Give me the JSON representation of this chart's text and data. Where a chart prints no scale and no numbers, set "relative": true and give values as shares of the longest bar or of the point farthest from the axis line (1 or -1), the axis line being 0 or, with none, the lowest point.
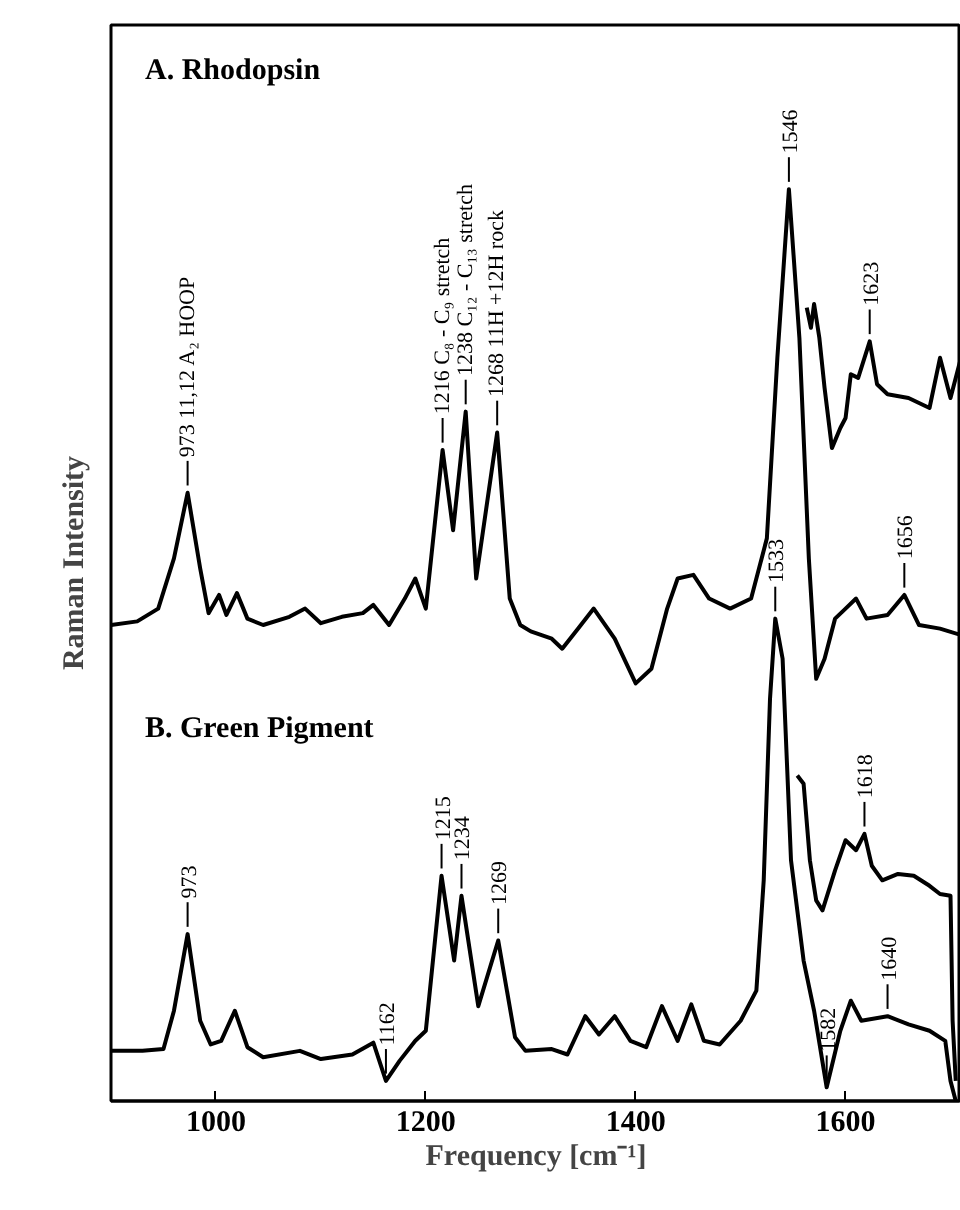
{
  "chart_data": {
    "type": "line",
    "relative": true,
    "xlabel": "Frequency [cm⁻¹]",
    "ylabel": "Raman Intensity",
    "xlim": [
      900,
      1710
    ],
    "xticks": [
      1000,
      1200,
      1400,
      1600
    ],
    "grid": false,
    "marker": "none",
    "line_style": "solid",
    "tick_labels": "x",
    "series": [
      {
        "color": "#000000",
        "x": [
          900,
          925,
          945,
          960,
          973,
          985,
          993,
          1003,
          1010,
          1020,
          1030,
          1045,
          1070,
          1085,
          1100,
          1120,
          1140,
          1150,
          1165,
          1180,
          1190,
          1200,
          1216,
          1226,
          1238,
          1248,
          1268,
          1280,
          1290,
          1300,
          1320,
          1330,
          1345,
          1360,
          1380,
          1400,
          1415,
          1430,
          1440,
          1455,
          1470,
          1490,
          1510,
          1525,
          1535,
          1546,
          1556,
          1565,
          1572,
          1580,
          1590,
          1600,
          1610,
          1620,
          1640,
          1656,
          1670,
          1690,
          1710
        ],
        "values": [
          0.522,
          0.526,
          0.54,
          0.595,
          0.667,
          0.584,
          0.535,
          0.555,
          0.533,
          0.557,
          0.529,
          0.522,
          0.531,
          0.54,
          0.524,
          0.531,
          0.535,
          0.544,
          0.522,
          0.551,
          0.573,
          0.54,
          0.714,
          0.626,
          0.756,
          0.573,
          0.733,
          0.551,
          0.522,
          0.515,
          0.507,
          0.496,
          0.518,
          0.54,
          0.507,
          0.458,
          0.474,
          0.54,
          0.573,
          0.577,
          0.551,
          0.54,
          0.551,
          0.617,
          0.815,
          1.0,
          0.837,
          0.595,
          0.463,
          0.485,
          0.529,
          0.54,
          0.551,
          0.529,
          0.533,
          0.555,
          0.522,
          0.518,
          0.511
        ]
      },
      {
        "color": "#000000",
        "x": [
          1563,
          1567,
          1570,
          1575,
          1580,
          1587,
          1595,
          1600,
          1605,
          1612,
          1623,
          1630,
          1640,
          1660,
          1680,
          1690,
          1700,
          1710
        ],
        "values": [
          0.87,
          0.848,
          0.874,
          0.837,
          0.782,
          0.716,
          0.738,
          0.749,
          0.797,
          0.793,
          0.833,
          0.786,
          0.775,
          0.771,
          0.76,
          0.815,
          0.771,
          0.815
        ]
      },
      {
        "color": "#000000",
        "x": [
          900,
          930,
          950,
          960,
          973,
          985,
          995,
          1005,
          1018,
          1030,
          1045,
          1080,
          1100,
          1130,
          1150,
          1162,
          1175,
          1190,
          1200,
          1215,
          1227,
          1234,
          1250,
          1269,
          1285,
          1295,
          1320,
          1335,
          1352,
          1365,
          1380,
          1395,
          1410,
          1425,
          1440,
          1453,
          1465,
          1480,
          1500,
          1515,
          1522,
          1528,
          1533,
          1540,
          1548,
          1560,
          1570,
          1582,
          1595,
          1605,
          1615,
          1640,
          1660,
          1680,
          1695,
          1700,
          1705
        ],
        "values": [
          0.055,
          0.055,
          0.057,
          0.099,
          0.183,
          0.088,
          0.062,
          0.066,
          0.099,
          0.059,
          0.048,
          0.055,
          0.046,
          0.051,
          0.064,
          0.022,
          0.044,
          0.066,
          0.077,
          0.247,
          0.154,
          0.225,
          0.104,
          0.176,
          0.07,
          0.055,
          0.057,
          0.051,
          0.093,
          0.073,
          0.093,
          0.066,
          0.059,
          0.104,
          0.066,
          0.106,
          0.066,
          0.062,
          0.088,
          0.121,
          0.242,
          0.441,
          0.529,
          0.485,
          0.264,
          0.154,
          0.099,
          0.015,
          0.077,
          0.11,
          0.088,
          0.093,
          0.084,
          0.077,
          0.066,
          0.022,
          0.0
        ]
      },
      {
        "color": "#000000",
        "x": [
          1554,
          1560,
          1566,
          1572,
          1578,
          1590,
          1600,
          1610,
          1618,
          1625,
          1635,
          1650,
          1665,
          1680,
          1690,
          1700,
          1702,
          1705
        ],
        "values": [
          0.357,
          0.348,
          0.264,
          0.22,
          0.209,
          0.253,
          0.286,
          0.275,
          0.293,
          0.258,
          0.242,
          0.249,
          0.247,
          0.236,
          0.227,
          0.225,
          0.088,
          0.022
        ]
      }
    ],
    "annotations": [
      "A. Rhodopsin",
      "B. Green Pigment",
      {
        "text": "973 11,12 A₂ HOOP",
        "x": 973,
        "y": 0.667
      },
      {
        "text": "1216  C₈ - C₉ stretch",
        "x": 1216,
        "y": 0.714
      },
      {
        "text": "1238  C₁₂ - C₁₃ stretch",
        "x": 1238,
        "y": 0.756
      },
      {
        "text": "1268  11H +12H rock",
        "x": 1268,
        "y": 0.733
      },
      {
        "text": "1546",
        "x": 1546,
        "y": 1.0
      },
      {
        "text": "1623",
        "x": 1623,
        "y": 0.833
      },
      {
        "text": "1656",
        "x": 1656,
        "y": 0.555
      },
      {
        "text": "973",
        "x": 973,
        "y": 0.183
      },
      {
        "text": "1162",
        "x": 1162,
        "y": 0.022
      },
      {
        "text": "1215",
        "x": 1215,
        "y": 0.247
      },
      {
        "text": "1234",
        "x": 1234,
        "y": 0.225
      },
      {
        "text": "1269",
        "x": 1269,
        "y": 0.176
      },
      {
        "text": "1533",
        "x": 1533,
        "y": 0.529
      },
      {
        "text": "1582",
        "x": 1582,
        "y": 0.015
      },
      {
        "text": "1618",
        "x": 1618,
        "y": 0.293
      },
      {
        "text": "1640",
        "x": 1640,
        "y": 0.093
      }
    ]
  }
}
